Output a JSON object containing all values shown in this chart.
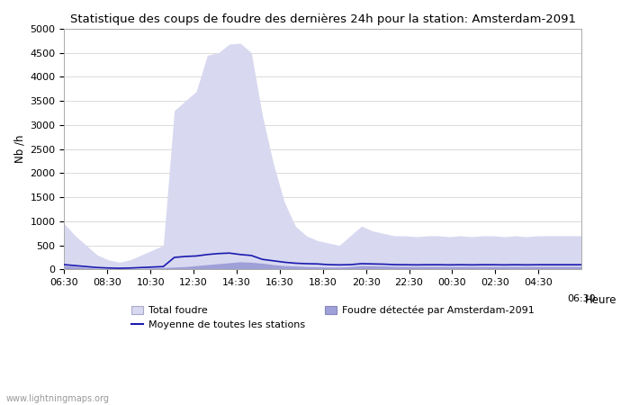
{
  "title": "Statistique des coups de foudre des dernières 24h pour la station: Amsterdam-2091",
  "xlabel": "Heure",
  "ylabel": "Nb /h",
  "watermark": "www.lightningmaps.org",
  "xlim_labels": [
    "06:30",
    "08:30",
    "10:30",
    "12:30",
    "14:30",
    "16:30",
    "18:30",
    "20:30",
    "22:30",
    "00:30",
    "02:30",
    "04:30",
    "06:30"
  ],
  "ylim": [
    0,
    5000
  ],
  "yticks": [
    0,
    500,
    1000,
    1500,
    2000,
    2500,
    3000,
    3500,
    4000,
    4500,
    5000
  ],
  "color_total": "#d8d8f0",
  "color_detected": "#a0a0d8",
  "color_mean_line": "#1a1ab0",
  "background_color": "#ffffff",
  "legend_total": "Total foudre",
  "legend_detected": "Foudre détectée par Amsterdam-2091",
  "legend_mean": "Moyenne de toutes les stations",
  "total_foudre": [
    950,
    700,
    500,
    300,
    200,
    150,
    200,
    300,
    400,
    500,
    3300,
    3500,
    3700,
    4450,
    4500,
    4680,
    4700,
    4500,
    3200,
    2200,
    1400,
    900,
    700,
    600,
    550,
    500,
    700,
    900,
    800,
    750,
    700,
    700,
    680,
    700,
    700,
    680,
    700,
    680,
    700,
    700,
    680,
    700,
    680,
    700,
    700,
    700,
    700,
    700
  ],
  "detected_amsterdam": [
    80,
    60,
    40,
    20,
    15,
    10,
    15,
    20,
    30,
    40,
    50,
    60,
    80,
    100,
    120,
    140,
    160,
    150,
    130,
    100,
    80,
    70,
    60,
    55,
    50,
    48,
    60,
    80,
    75,
    70,
    65,
    62,
    60,
    62,
    62,
    60,
    62,
    60,
    62,
    62,
    60,
    62,
    60,
    62,
    62,
    62,
    62,
    62
  ],
  "mean_line": [
    100,
    80,
    60,
    40,
    30,
    25,
    30,
    40,
    50,
    60,
    250,
    270,
    280,
    310,
    330,
    340,
    310,
    290,
    210,
    180,
    150,
    130,
    120,
    115,
    100,
    95,
    100,
    120,
    115,
    110,
    100,
    98,
    95,
    98,
    98,
    95,
    98,
    95,
    98,
    98,
    95,
    98,
    95,
    98,
    98,
    98,
    98,
    98
  ],
  "n_steps": 48
}
